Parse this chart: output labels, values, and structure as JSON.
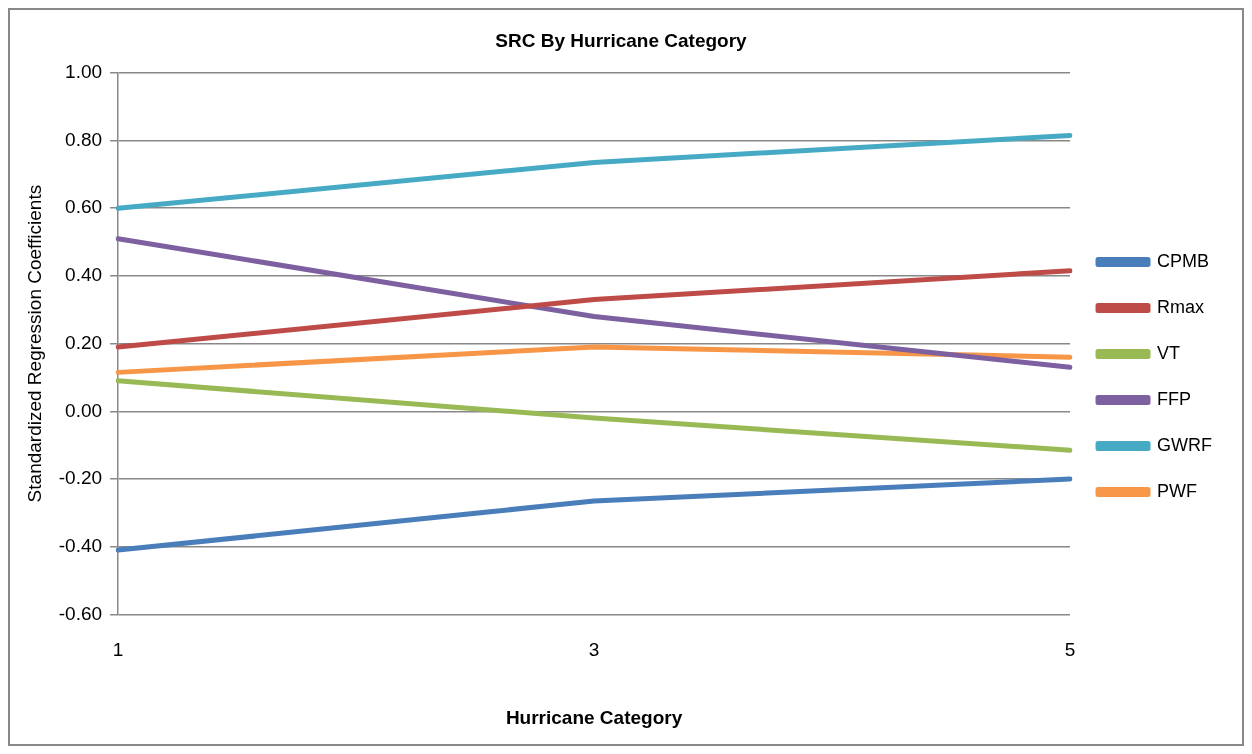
{
  "chart_data": {
    "type": "line",
    "title": "SRC By Hurricane Category",
    "xlabel": "Hurricane Category",
    "ylabel": "Standardized Regression Coefficients",
    "categories": [
      "1",
      "3",
      "5"
    ],
    "ylim": [
      -0.6,
      1.0
    ],
    "yticks": [
      {
        "value": -0.6,
        "label": "-0.60"
      },
      {
        "value": -0.4,
        "label": "-0.40"
      },
      {
        "value": -0.2,
        "label": "-0.20"
      },
      {
        "value": 0,
        "label": "0.00"
      },
      {
        "value": 0.2,
        "label": "0.20"
      },
      {
        "value": 0.4,
        "label": "0.40"
      },
      {
        "value": 0.6,
        "label": "0.60"
      },
      {
        "value": 0.8,
        "label": "0.80"
      },
      {
        "value": 1.0,
        "label": "1.00"
      }
    ],
    "grid": "y",
    "legend": "right",
    "marker": "none",
    "line_style": "solid",
    "series": [
      {
        "name": "CPMB",
        "color": "#4a7ebb",
        "values": [
          -0.41,
          -0.265,
          -0.2
        ]
      },
      {
        "name": "Rmax",
        "color": "#be4b48",
        "values": [
          0.19,
          0.33,
          0.415
        ]
      },
      {
        "name": "VT",
        "color": "#98b954",
        "values": [
          0.09,
          -0.02,
          -0.115
        ]
      },
      {
        "name": "FFP",
        "color": "#7d60a0",
        "values": [
          0.51,
          0.28,
          0.13
        ]
      },
      {
        "name": "GWRF",
        "color": "#46aac5",
        "values": [
          0.6,
          0.735,
          0.815
        ]
      },
      {
        "name": "PWF",
        "color": "#f79646",
        "values": [
          0.115,
          0.19,
          0.16
        ]
      }
    ]
  }
}
